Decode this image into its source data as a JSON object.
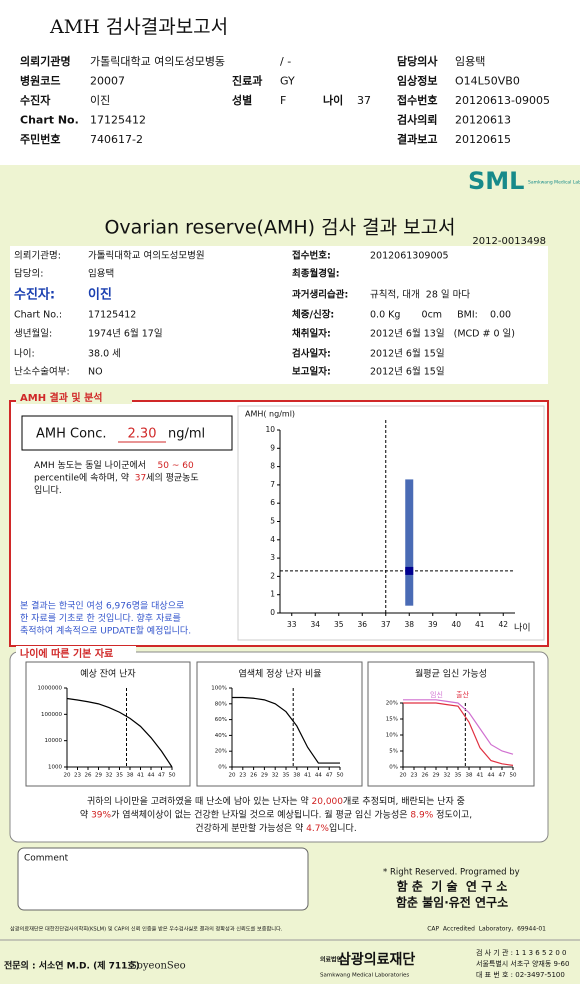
{
  "header": {
    "title": "AMH 검사결과보고서",
    "rows": [
      [
        "의뢰기관명",
        "가톨릭대학교 여의도성모병동",
        null,
        "/ -",
        null,
        null,
        "담당의사",
        "임용택"
      ],
      [
        "병원코드",
        "20007",
        "진료과",
        "GY",
        null,
        null,
        "임상정보",
        "O14L50VB0"
      ],
      [
        "수진자",
        "이진",
        "성별",
        "F",
        "나이",
        "37",
        "접수번호",
        "20120613-09005"
      ],
      [
        "Chart No.",
        "17125412",
        null,
        null,
        null,
        null,
        "검사의뢰",
        "20120613"
      ],
      [
        "주민번호",
        "740617-2",
        null,
        null,
        null,
        null,
        "결과보고",
        "20120615"
      ]
    ]
  },
  "report": {
    "logo": "SML",
    "logo_sub": "Samkwang Medical Laboratories",
    "title": "Ovarian reserve(AMH) 검사 결과 보고서",
    "number": "2012-0013498",
    "left": [
      [
        "의뢰기관명:",
        "가톨릭대학교 여의도성모병원"
      ],
      [
        "담당의:",
        "임용택"
      ],
      [
        "수진자:",
        "이진"
      ],
      [
        "Chart No.:",
        "17125412"
      ],
      [
        "생년월일:",
        "1974년 6월 17일"
      ],
      [
        "나이:",
        "38.0 세"
      ],
      [
        "난소수술여부:",
        "NO"
      ]
    ],
    "right": [
      [
        "접수번호:",
        "2012061309005"
      ],
      [
        "최종월경일:"
      ],
      [
        "과거생리습관:",
        "규칙적, 대개  28 일 마다"
      ],
      [
        "체중/신장:",
        "0.0 Kg       0cm     BMI:    0.00"
      ],
      [
        "채취일자:",
        "2012년 6월 13일   (MCD # 0 일)"
      ],
      [
        "검사일자:",
        "2012년 6월 15일"
      ],
      [
        "보고일자:",
        "2012년 6월 15일"
      ]
    ]
  },
  "analysis": {
    "title": "AMH 결과 및 분석",
    "conc_label": "AMH Conc.",
    "conc_value": "2.30",
    "conc_unit": "ng/ml",
    "lines": [
      [
        {
          "text": "AMH 농도는 동일 나이군에서    "
        },
        {
          "text": "50 ~ 60",
          "highlight": true
        }
      ],
      [
        {
          "text": "percentile에 속하며, 약  "
        },
        {
          "text": "37",
          "highlight": true
        },
        {
          "text": "세의 평균농도"
        }
      ],
      [
        {
          "text": "입니다."
        }
      ]
    ],
    "note": [
      "본 결과는 한국인 여성 6,976명을 대상으로",
      "한 자료를 기초로 한 것입니다. 향후 자료를",
      "축적하여 계속적으로 UPDATE할 예정입니다."
    ]
  },
  "age_data": {
    "title": "나이에 따른 기본 자료",
    "chart_titles": [
      "예상 잔여 난자",
      "염색체 정상 난자 비율",
      "월평균 임신 가능성"
    ],
    "summary": [
      [
        {
          "text": "귀하의 나이만을 고려하였을 때 난소에 남아 있는 난자는 약 "
        },
        {
          "text": "20,000",
          "highlight": true
        },
        {
          "text": "개로 추정되며, 배란되는 난자 중"
        }
      ],
      [
        {
          "text": "약 "
        },
        {
          "text": "39%",
          "highlight": true
        },
        {
          "text": "가 염색체이상이 없는 건강한 난자일 것으로 예상됩니다. 월 평균 임신 가능성은 "
        },
        {
          "text": "8.9%",
          "highlight": true
        },
        {
          "text": " 정도이고,"
        }
      ],
      [
        {
          "text": "건강하게 분만할 가능성은 약 "
        },
        {
          "text": "4.7%",
          "highlight": true
        },
        {
          "text": "입니다."
        }
      ]
    ]
  },
  "footer": {
    "comment": "Comment",
    "rights": "* Right Reserved. Programed by",
    "lab1": "함 춘  기 술  연 구 소",
    "lab2": "함춘 불임·유전 연구소",
    "cert": "삼광의료재단은 대한진단검사의학회(KSLM) 및 CAP의 신뢰 인증을 받은 우수검사실로 결과의 정확성과 신뢰도를 보증합니다.",
    "cap": "CAP  Accredited  Laboratory,  69944-01",
    "doctor": "전문의 : 서소연 M.D. (제 711호)",
    "signature": "SoyeonSeo",
    "foundation_prefix": "의료법인",
    "foundation": "삼광의료재단",
    "foundation_sub": "Samkwang Medical Laboratories",
    "contact": [
      "검 사 기 관 : 1 1 3 6 5 2 0 0",
      "서울특별시 서초구 양재동 9-60",
      "대 표 번 호 : 02-3497-5100"
    ]
  },
  "chart_data": [
    {
      "type": "scatter",
      "y_label": "AMH( ng/ml)",
      "x_label": "나이",
      "x": [
        38
      ],
      "values": [
        2.3
      ],
      "lower": [
        0.4
      ],
      "upper": [
        7.3
      ],
      "reference_x": 37,
      "xlim": [
        32.5,
        42.5
      ],
      "ylim": [
        0,
        10
      ],
      "xticks": [
        33,
        34,
        35,
        36,
        37,
        38,
        39,
        40,
        41,
        42
      ],
      "yticks": [
        0,
        1,
        2,
        3,
        4,
        5,
        6,
        7,
        8,
        9,
        10
      ],
      "color": "#000090",
      "range_color": "#4a6bb5"
    },
    {
      "type": "line",
      "log_scale": true,
      "x": [
        20,
        23,
        26,
        29,
        32,
        35,
        38,
        41,
        44,
        47,
        50
      ],
      "values": [
        400000,
        350000,
        300000,
        250000,
        180000,
        120000,
        70000,
        35000,
        13000,
        4000,
        1000
      ],
      "color": "#000000",
      "reference_x": 37,
      "xlim": [
        20,
        50
      ],
      "ylim": [
        1000,
        1000000
      ],
      "xticks": [
        20,
        23,
        26,
        29,
        32,
        35,
        38,
        41,
        44,
        47,
        50
      ],
      "yticks": [
        1000,
        10000,
        100000,
        1000000
      ]
    },
    {
      "type": "line",
      "x": [
        20,
        23,
        26,
        29,
        32,
        35,
        38,
        41,
        44,
        47,
        50
      ],
      "values": [
        88,
        88,
        87,
        85,
        80,
        70,
        52,
        25,
        5,
        5,
        5
      ],
      "color": "#000000",
      "reference_x": 37,
      "xlim": [
        20,
        50
      ],
      "ylim": [
        0,
        100
      ],
      "xticks": [
        20,
        23,
        26,
        29,
        32,
        35,
        38,
        41,
        44,
        47,
        50
      ],
      "yticks": [
        {
          "value": 0,
          "label": "0%"
        },
        {
          "value": 20,
          "label": "20%"
        },
        {
          "value": 40,
          "label": "40%"
        },
        {
          "value": 60,
          "label": "60%"
        },
        {
          "value": 80,
          "label": "80%"
        },
        {
          "value": 100,
          "label": "100%"
        }
      ]
    },
    {
      "type": "line",
      "x": [
        20,
        23,
        26,
        29,
        32,
        35,
        38,
        41,
        44,
        47,
        50
      ],
      "reference_x": 37,
      "series": [
        {
          "name": "임신",
          "color": "#d070d0",
          "values": [
            21,
            21,
            21,
            21,
            20.5,
            20,
            17,
            12,
            7,
            5,
            4
          ]
        },
        {
          "name": "출산",
          "color": "#e03040",
          "values": [
            20,
            20,
            20,
            20,
            19.5,
            19,
            14,
            6,
            2,
            1,
            0.5
          ]
        }
      ],
      "xlim": [
        20,
        50
      ],
      "ylim": [
        0,
        20
      ],
      "xticks": [
        20,
        23,
        26,
        29,
        32,
        35,
        38,
        41,
        44,
        47,
        50
      ],
      "yticks": [
        {
          "value": 0,
          "label": "0%"
        },
        {
          "value": 5,
          "label": "5%"
        },
        {
          "value": 10,
          "label": "10%"
        },
        {
          "value": 15,
          "label": "15%"
        },
        {
          "value": 20,
          "label": "20%"
        }
      ]
    }
  ]
}
